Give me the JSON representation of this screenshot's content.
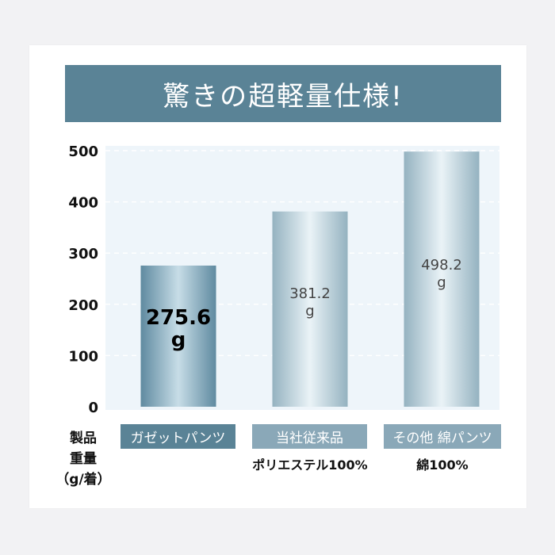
{
  "chart_data": {
    "type": "bar",
    "title": "驚きの超軽量仕様!",
    "ylabel_lines": [
      "製品",
      "重量",
      "（g/着）"
    ],
    "yticks": [
      0,
      100,
      200,
      300,
      400,
      500
    ],
    "ylim": [
      0,
      500
    ],
    "grid": true,
    "categories": [
      "ガゼットパンツ",
      "当社従来品",
      "その他 綿パンツ"
    ],
    "subcategories": [
      "",
      "ポリエステル100%",
      "綿100%"
    ],
    "values": [
      275.6,
      381.2,
      498.2
    ],
    "data_labels": [
      [
        "275.6",
        "g"
      ],
      [
        "381.2",
        "g"
      ],
      [
        "498.2",
        "g"
      ]
    ],
    "colors": {
      "title_bg": "#5a8396",
      "category_box_primary": "#5a8396",
      "category_box_secondary": "#8aa8b8",
      "bar_primary_edge": "#5f8aa0",
      "bar_primary_center": "#c7dde7",
      "bar_secondary_edge": "#94b2c0",
      "bar_secondary_center": "#eaf3f7"
    }
  }
}
